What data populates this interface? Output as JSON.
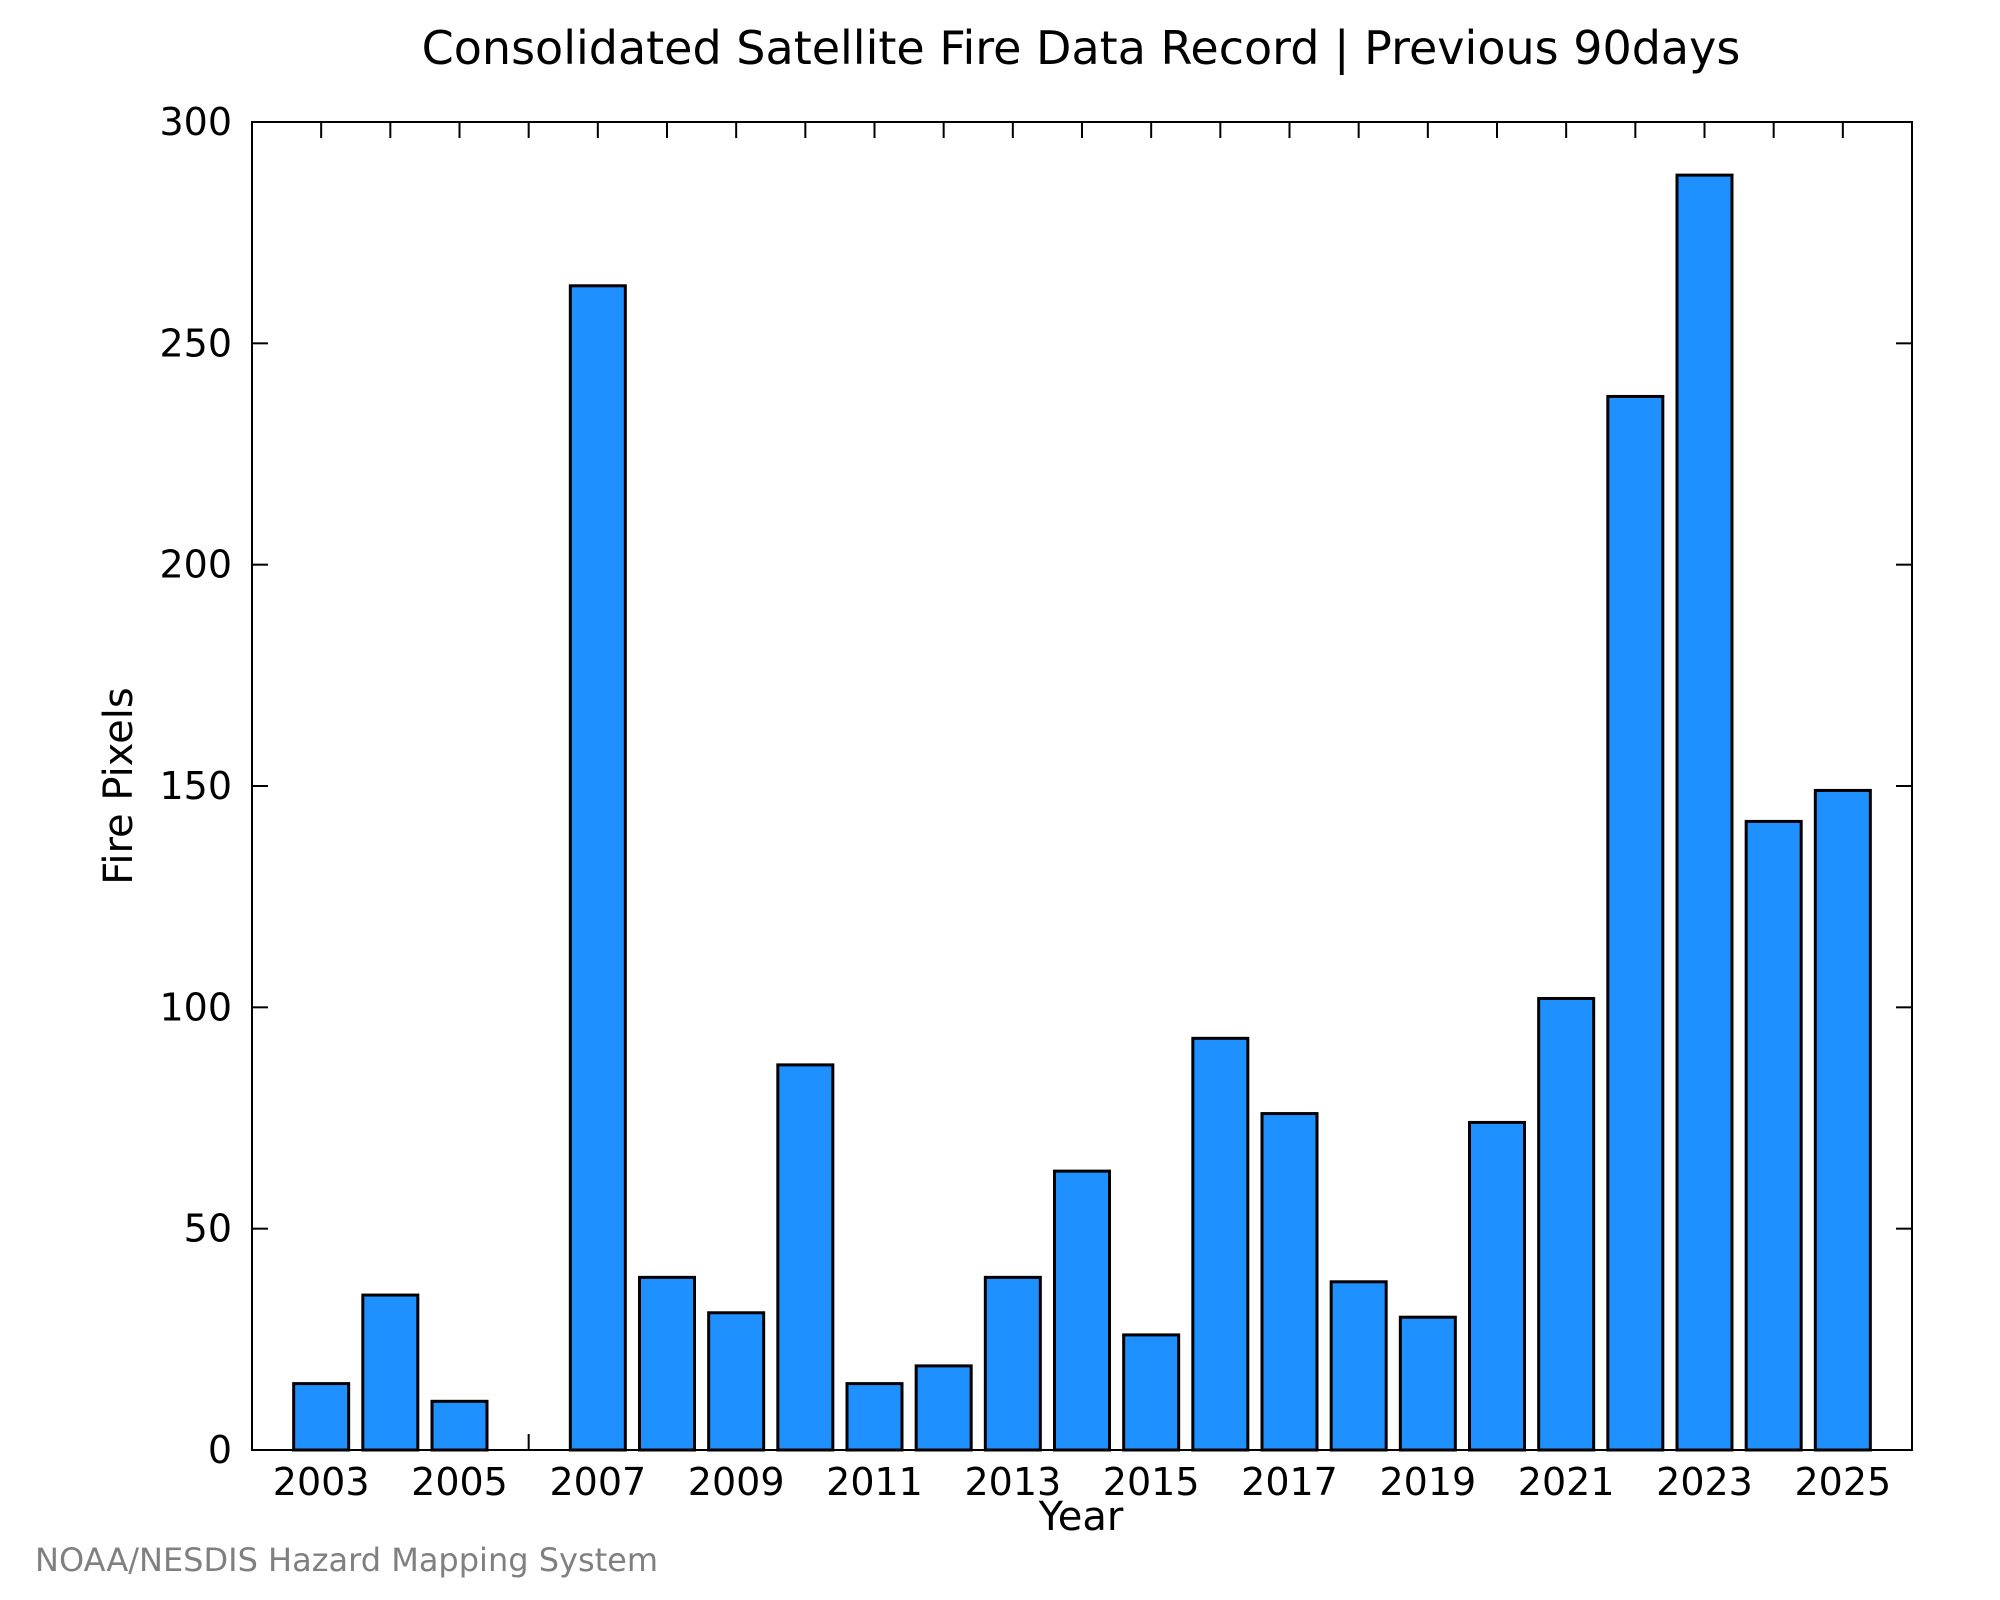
{
  "chart_data": {
    "type": "bar",
    "title": "Consolidated Satellite Fire Data Record | Previous 90days",
    "xlabel": "Year",
    "ylabel": "Fire Pixels",
    "categories": [
      "2003",
      "2004",
      "2005",
      "2006",
      "2007",
      "2008",
      "2009",
      "2010",
      "2011",
      "2012",
      "2013",
      "2014",
      "2015",
      "2016",
      "2017",
      "2018",
      "2019",
      "2020",
      "2021",
      "2022",
      "2023",
      "2024",
      "2025"
    ],
    "values": [
      15,
      35,
      11,
      0,
      263,
      39,
      31,
      87,
      15,
      19,
      39,
      63,
      26,
      93,
      76,
      38,
      30,
      74,
      102,
      238,
      288,
      142,
      149
    ],
    "x_tick_labels": [
      "2003",
      "2005",
      "2007",
      "2009",
      "2011",
      "2013",
      "2015",
      "2017",
      "2019",
      "2021",
      "2023",
      "2025"
    ],
    "y_ticks": [
      0,
      50,
      100,
      150,
      200,
      250,
      300
    ],
    "ylim": [
      0,
      300
    ],
    "grid": false,
    "legend": "none",
    "colors": {
      "bar_fill": "#1e90ff",
      "bar_stroke": "#000000",
      "axis": "#000000",
      "credit": "#808080"
    }
  },
  "footer": {
    "credit": "NOAA/NESDIS Hazard Mapping System"
  }
}
